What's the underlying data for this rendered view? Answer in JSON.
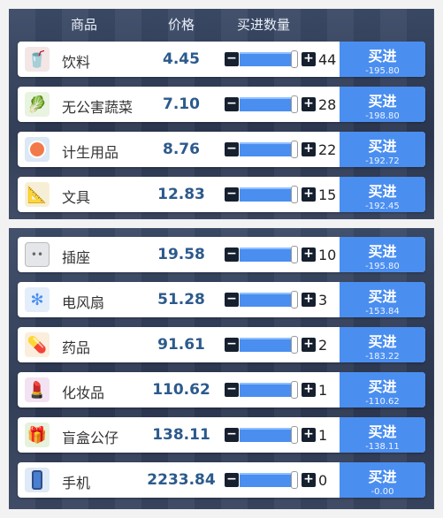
{
  "header": {
    "col_item": "商品",
    "col_price": "价格",
    "col_qty": "买进数量"
  },
  "controls": {
    "minus": "−",
    "plus": "+"
  },
  "items": [
    {
      "name": "饮料",
      "price": "4.45",
      "qty": "44",
      "buy_label": "买进",
      "cost": "-195.80",
      "icon": "drink-icon"
    },
    {
      "name": "无公害蔬菜",
      "price": "7.10",
      "qty": "28",
      "buy_label": "买进",
      "cost": "-198.80",
      "icon": "vegetable-icon"
    },
    {
      "name": "计生用品",
      "price": "8.76",
      "qty": "22",
      "buy_label": "买进",
      "cost": "-192.72",
      "icon": "contraception-box-icon"
    },
    {
      "name": "文具",
      "price": "12.83",
      "qty": "15",
      "buy_label": "买进",
      "cost": "-192.45",
      "icon": "stationery-icon"
    },
    {
      "name": "插座",
      "price": "19.58",
      "qty": "10",
      "buy_label": "买进",
      "cost": "-195.80",
      "icon": "power-socket-icon"
    },
    {
      "name": "电风扇",
      "price": "51.28",
      "qty": "3",
      "buy_label": "买进",
      "cost": "-153.84",
      "icon": "electric-fan-icon"
    },
    {
      "name": "药品",
      "price": "91.61",
      "qty": "2",
      "buy_label": "买进",
      "cost": "-183.22",
      "icon": "medicine-bottle-icon"
    },
    {
      "name": "化妆品",
      "price": "110.62",
      "qty": "1",
      "buy_label": "买进",
      "cost": "-110.62",
      "icon": "cosmetics-icon"
    },
    {
      "name": "盲盒公仔",
      "price": "138.11",
      "qty": "1",
      "buy_label": "买进",
      "cost": "-138.11",
      "icon": "blind-box-figure-icon"
    },
    {
      "name": "手机",
      "price": "2233.84",
      "qty": "0",
      "buy_label": "买进",
      "cost": "-0.00",
      "icon": "mobile-phone-icon"
    }
  ],
  "colors": {
    "accent": "#4a8ef0",
    "price_text": "#2c5a8c",
    "panel_bg": "#2f3a55"
  }
}
